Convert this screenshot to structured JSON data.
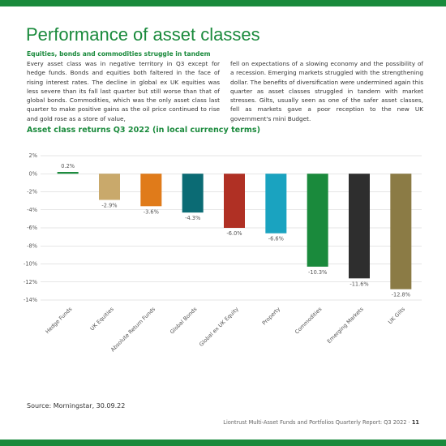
{
  "header": {
    "title": "Performance of asset classes"
  },
  "article": {
    "subheading": "Equities, bonds and commodities struggle in tandem",
    "columns": [
      "Every asset class was in negative territory in Q3 except for hedge funds. Bonds and equities both faltered in the face of rising interest rates. The decline in global ex UK equities was less severe than its fall last quarter but still worse than that of global bonds. Commodities, which was the only asset class last quarter to make positive gains as the oil price continued to rise and gold rose as a store of value,",
      "fell on expectations of a slowing economy and the possibility of a recession. Emerging markets struggled with the strengthening dollar. The benefits of diversification were undermined again this quarter as asset classes struggled in tandem with market stresses. Gilts, usually seen as one of the safer asset classes, fell as markets gave a poor reception to the new UK government's mini Budget."
    ]
  },
  "chart_data": {
    "type": "bar",
    "title": "Asset class returns Q3 2022 (in local currency terms)",
    "categories": [
      "Hedge Funds",
      "UK Equities",
      "Absolute Return Funds",
      "Global Bonds",
      "Global ex UK Equity",
      "Property",
      "Commodities",
      "Emerging Markets",
      "UK Gilts"
    ],
    "values": [
      0.2,
      -2.9,
      -3.6,
      -4.3,
      -6.0,
      -6.6,
      -10.3,
      -11.6,
      -12.8
    ],
    "value_labels": [
      "0.2%",
      "-2.9%",
      "-3.6%",
      "-4.3%",
      "-6.0%",
      "-6.6%",
      "-10.3%",
      "-11.6%",
      "-12.8%"
    ],
    "colors": [
      "#1a8a3c",
      "#c9a96b",
      "#e07b1a",
      "#0b6b74",
      "#b03024",
      "#1aa3c0",
      "#1a8a3c",
      "#2e2e2e",
      "#8b7b45"
    ],
    "ylim": [
      -14,
      2
    ],
    "yticks": [
      {
        "value": 2,
        "label": "2%"
      },
      {
        "value": 0,
        "label": "0%"
      },
      {
        "value": -2,
        "label": "-2%"
      },
      {
        "value": -4,
        "label": "-4%"
      },
      {
        "value": -6,
        "label": "-6%"
      },
      {
        "value": -8,
        "label": "-8%"
      },
      {
        "value": -10,
        "label": "-10%"
      },
      {
        "value": -12,
        "label": "-12%"
      },
      {
        "value": -14,
        "label": "-14%"
      }
    ],
    "grid": true
  },
  "source": "Source: Morningstar, 30.09.22",
  "footer": {
    "text": "Liontrust Multi-Asset Funds and Portfolios Quarterly Report: Q3 2022",
    "separator": "·",
    "page": "11"
  }
}
